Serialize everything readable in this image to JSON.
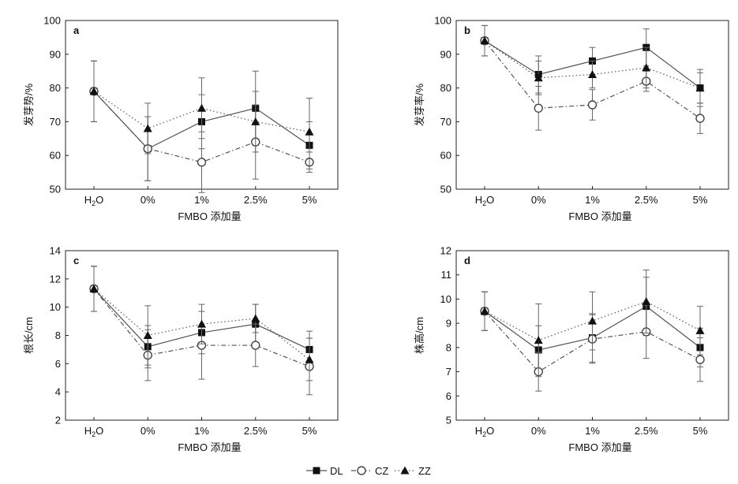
{
  "chart_data": [
    {
      "type": "line",
      "panel_letter": "a",
      "ylabel": "发芽势/%",
      "xlabel": "FMBO 添加量",
      "categories": [
        "H2O",
        "0%",
        "1%",
        "2.5%",
        "5%"
      ],
      "ylim": [
        50,
        100
      ],
      "yticks": [
        50,
        60,
        70,
        80,
        90,
        100
      ],
      "series": [
        {
          "name": "DL",
          "values": [
            79,
            62,
            70,
            74,
            63
          ],
          "err": [
            9.0,
            9.5,
            8.0,
            11.0,
            7.0
          ]
        },
        {
          "name": "CZ",
          "values": [
            79,
            62,
            58,
            64,
            58
          ],
          "err": [
            9.0,
            9.5,
            9.0,
            11.0,
            3.0
          ]
        },
        {
          "name": "ZZ",
          "values": [
            79,
            68,
            74,
            70,
            67
          ],
          "err": [
            9.0,
            7.5,
            9.0,
            9.0,
            10.0
          ]
        }
      ]
    },
    {
      "type": "line",
      "panel_letter": "b",
      "ylabel": "发芽率/%",
      "xlabel": "FMBO 添加量",
      "categories": [
        "H2O",
        "0%",
        "1%",
        "2.5%",
        "5%"
      ],
      "ylim": [
        50,
        100
      ],
      "yticks": [
        50,
        60,
        70,
        80,
        90,
        100
      ],
      "series": [
        {
          "name": "DL",
          "values": [
            94,
            84,
            88,
            92,
            80
          ],
          "err": [
            4.5,
            5.5,
            4.0,
            5.5,
            5.5
          ]
        },
        {
          "name": "CZ",
          "values": [
            94,
            74,
            75,
            82,
            71
          ],
          "err": [
            4.5,
            6.5,
            4.5,
            3.0,
            4.5
          ]
        },
        {
          "name": "ZZ",
          "values": [
            94,
            83,
            84,
            86,
            80
          ],
          "err": [
            4.5,
            5.0,
            4.0,
            6.0,
            4.5
          ]
        }
      ]
    },
    {
      "type": "line",
      "panel_letter": "c",
      "ylabel": "根长/cm",
      "xlabel": "FMBO 添加量",
      "categories": [
        "H2O",
        "0%",
        "1%",
        "2.5%",
        "5%"
      ],
      "ylim": [
        2,
        14
      ],
      "yticks": [
        2,
        4,
        6,
        8,
        10,
        12,
        14
      ],
      "series": [
        {
          "name": "DL",
          "values": [
            11.3,
            7.2,
            8.2,
            8.8,
            7.0
          ],
          "err": [
            1.6,
            1.5,
            1.5,
            1.4,
            1.3
          ]
        },
        {
          "name": "CZ",
          "values": [
            11.3,
            6.6,
            7.3,
            7.3,
            5.8
          ],
          "err": [
            1.6,
            1.8,
            2.4,
            1.5,
            2.0
          ]
        },
        {
          "name": "ZZ",
          "values": [
            11.3,
            8.0,
            8.8,
            9.2,
            6.3
          ],
          "err": [
            1.6,
            2.1,
            1.4,
            1.0,
            1.5
          ]
        }
      ]
    },
    {
      "type": "line",
      "panel_letter": "d",
      "ylabel": "株高/cm",
      "xlabel": "FMBO 添加量",
      "categories": [
        "H2O",
        "0%",
        "1%",
        "2.5%",
        "5%"
      ],
      "ylim": [
        5,
        12
      ],
      "yticks": [
        5,
        6,
        7,
        8,
        9,
        10,
        11,
        12
      ],
      "series": [
        {
          "name": "DL",
          "values": [
            9.5,
            7.9,
            8.4,
            9.7,
            8.0
          ],
          "err": [
            0.8,
            1.0,
            1.0,
            1.2,
            0.8
          ]
        },
        {
          "name": "CZ",
          "values": [
            9.5,
            7.0,
            8.35,
            8.65,
            7.5
          ],
          "err": [
            0.8,
            0.8,
            1.0,
            1.1,
            0.9
          ]
        },
        {
          "name": "ZZ",
          "values": [
            9.5,
            8.3,
            9.1,
            9.9,
            8.7
          ],
          "err": [
            0.8,
            1.5,
            1.2,
            1.3,
            1.0
          ]
        }
      ]
    }
  ],
  "legend": [
    {
      "name": "DL",
      "marker": "filled-square",
      "dash": "solid"
    },
    {
      "name": "CZ",
      "marker": "open-circle",
      "dash": "dashdot"
    },
    {
      "name": "ZZ",
      "marker": "filled-triangle",
      "dash": "dotted"
    }
  ],
  "colors": {
    "line": "#555555",
    "marker": "#111111",
    "axis": "#222222",
    "errorbar": "#666666"
  }
}
